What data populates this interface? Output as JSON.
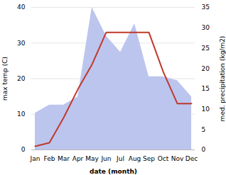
{
  "chart_data": {
    "type": "line",
    "xlabel": "date (month)",
    "ylabel": "max temp (C)",
    "y2label": "med. precipitation (kg/m2)",
    "categories": [
      "Jan",
      "Feb",
      "Mar",
      "Apr",
      "May",
      "Jun",
      "Jul",
      "Aug",
      "Sep",
      "Oct",
      "Nov",
      "Dec"
    ],
    "series": [
      {
        "type": "area",
        "axis": "y2",
        "color": "#bcc5ee",
        "values": [
          9,
          11,
          11,
          13,
          35,
          28,
          24,
          31,
          18,
          18,
          17,
          13
        ]
      },
      {
        "type": "line",
        "color": "#c0392b",
        "values": [
          1,
          2,
          9,
          17,
          24,
          33,
          33,
          33,
          33,
          22,
          13,
          13
        ]
      }
    ],
    "ylim": [
      0,
      40
    ],
    "yticks": [
      0,
      10,
      20,
      30,
      40
    ],
    "y2lim": [
      0,
      35
    ],
    "y2ticks": [
      0,
      5,
      10,
      15,
      20,
      25,
      30,
      35
    ],
    "grid": true
  }
}
